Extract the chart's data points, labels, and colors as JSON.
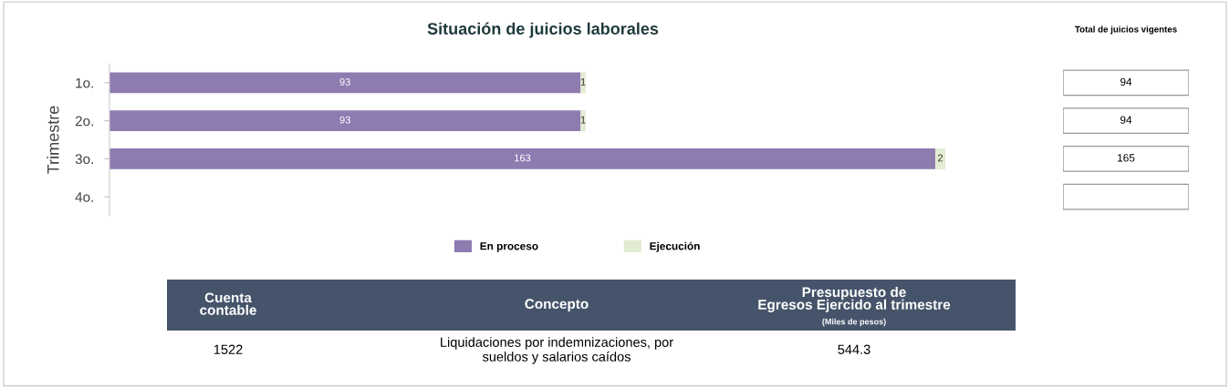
{
  "chart_data": [
    {
      "type": "bar",
      "orientation": "horizontal",
      "stacked": true,
      "title": "Situación de juicios laborales",
      "ylabel": "Trimestre",
      "categories": [
        "1o.",
        "2o.",
        "3o.",
        "4o."
      ],
      "series": [
        {
          "name": "En proceso",
          "color": "#8e7bb0",
          "values": [
            93,
            93,
            163,
            null
          ]
        },
        {
          "name": "Ejecución",
          "color": "#e2ecd2",
          "values": [
            1,
            1,
            2,
            null
          ]
        }
      ],
      "data_labels": true,
      "legend": "bottom",
      "grid": false,
      "tick_labels": "y"
    },
    {
      "type": "other",
      "title": "Total de juicios vigentes",
      "annotations": [
        "94",
        "94",
        "165",
        null
      ]
    },
    {
      "type": "other",
      "annotations": [
        "Cuenta\ncontable",
        "Concepto",
        "Presupuesto de\nEgresos Ejercido al trimestre",
        "(Miles de pesos)",
        "1522",
        "Liquidaciones por indemnizaciones, por\nsueldos y salarios caídos",
        "544.3"
      ]
    }
  ]
}
